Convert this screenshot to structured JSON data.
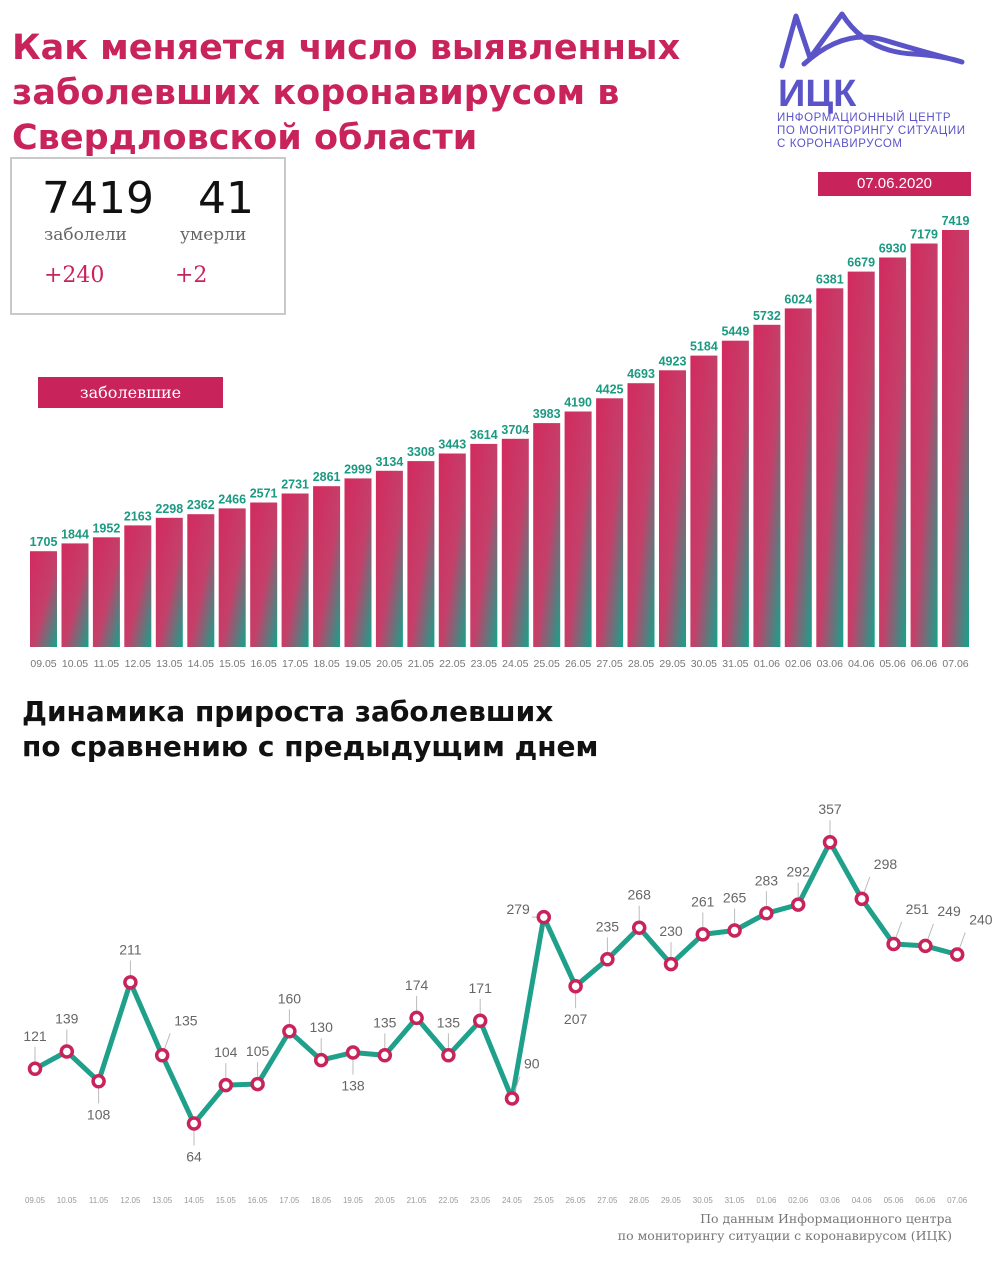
{
  "header": {
    "title_lines": [
      "Как меняется число выявленных",
      "заболевших коронавирусом в",
      "Свердловской области"
    ]
  },
  "logo": {
    "abbr": "ИЦК",
    "lines": [
      "ИНФОРМАЦИОННЫЙ ЦЕНТР",
      "ПО МОНИТОРИНГУ СИТУАЦИИ",
      "С КОРОНАВИРУСОМ"
    ],
    "color": "#5b54c8"
  },
  "stats": {
    "cases_total": "7419",
    "cases_label": "заболели",
    "cases_delta": "+240",
    "deaths_total": "41",
    "deaths_label": "умерли",
    "deaths_delta": "+2"
  },
  "date": "07.06.2020",
  "colors": {
    "accent": "#c8235a",
    "teal": "#1fa08a",
    "label_teal": "#1a9a82"
  },
  "chart_data": [
    {
      "type": "bar",
      "legend": "заболевшие",
      "categories": [
        "09.05",
        "10.05",
        "11.05",
        "12.05",
        "13.05",
        "14.05",
        "15.05",
        "16.05",
        "17.05",
        "18.05",
        "19.05",
        "20.05",
        "21.05",
        "22.05",
        "23.05",
        "24.05",
        "25.05",
        "26.05",
        "27.05",
        "28.05",
        "29.05",
        "30.05",
        "31.05",
        "01.06",
        "02.06",
        "03.06",
        "04.06",
        "05.06",
        "06.06",
        "07.06"
      ],
      "values": [
        1705,
        1844,
        1952,
        2163,
        2298,
        2362,
        2466,
        2571,
        2731,
        2861,
        2999,
        3134,
        3308,
        3443,
        3614,
        3704,
        3983,
        4190,
        4425,
        4693,
        4923,
        5184,
        5449,
        5732,
        6024,
        6381,
        6679,
        6930,
        7179,
        7419
      ]
    },
    {
      "type": "line",
      "title_lines": [
        "Динамика прироста заболевших",
        "по сравнению с предыдущим днем"
      ],
      "categories": [
        "09.05",
        "10.05",
        "11.05",
        "12.05",
        "13.05",
        "14.05",
        "15.05",
        "16.05",
        "17.05",
        "18.05",
        "19.05",
        "20.05",
        "21.05",
        "22.05",
        "23.05",
        "24.05",
        "25.05",
        "26.05",
        "27.05",
        "28.05",
        "29.05",
        "30.05",
        "31.05",
        "01.06",
        "02.06",
        "03.06",
        "04.06",
        "05.06",
        "06.06",
        "07.06"
      ],
      "values": [
        121,
        139,
        108,
        211,
        135,
        64,
        104,
        105,
        160,
        130,
        138,
        135,
        174,
        135,
        171,
        90,
        279,
        207,
        235,
        268,
        230,
        261,
        265,
        283,
        292,
        357,
        298,
        251,
        249,
        240
      ],
      "label_pos": [
        "above",
        "above",
        "below",
        "above",
        "right",
        "below",
        "above",
        "above",
        "above",
        "above",
        "below",
        "above",
        "above",
        "above",
        "above",
        "right",
        "left",
        "below",
        "above",
        "above",
        "above",
        "above",
        "above",
        "above",
        "above",
        "above",
        "right",
        "right",
        "right",
        "right"
      ]
    }
  ],
  "source": {
    "lines": [
      "По данным Информационного центра",
      "по мониторингу ситуации с коронавирусом (ИЦК)"
    ]
  }
}
